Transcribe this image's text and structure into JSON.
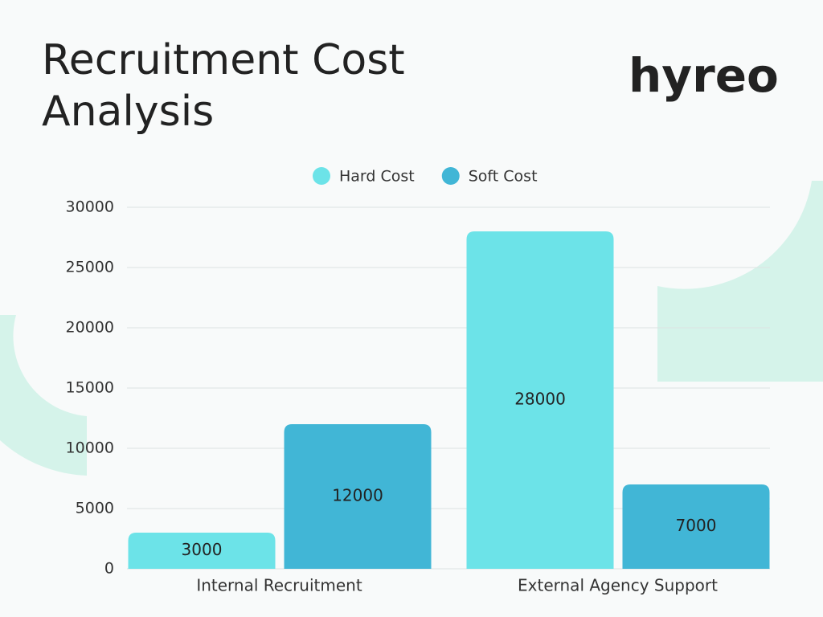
{
  "chart_data": {
    "type": "bar",
    "title": "Recruitment Cost Analysis",
    "logo": "hyreo",
    "categories": [
      "Internal Recruitment",
      "External Agency Support"
    ],
    "series": [
      {
        "name": "Hard Cost",
        "color": "#6ce3e8",
        "values": [
          3000,
          28000
        ]
      },
      {
        "name": "Soft Cost",
        "color": "#41b6d6",
        "values": [
          12000,
          7000
        ]
      }
    ],
    "ylim": [
      0,
      30000
    ],
    "yticks": [
      0,
      5000,
      10000,
      15000,
      20000,
      25000,
      30000
    ],
    "grid": true,
    "legend": "top",
    "data_labels": true
  }
}
